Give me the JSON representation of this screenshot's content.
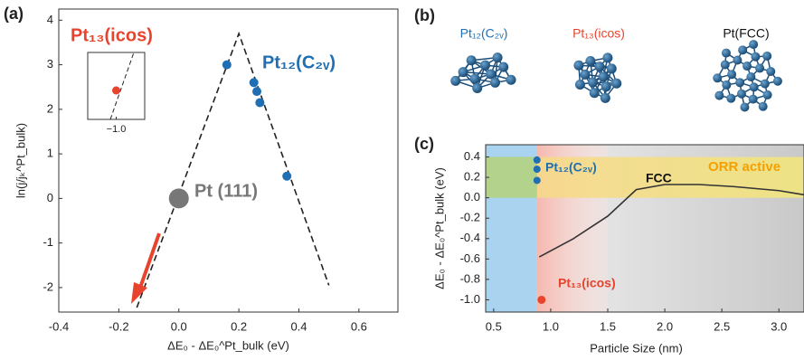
{
  "panel_b": {
    "label": "(b)",
    "structures": [
      {
        "label": "Pt₁₂(C₂ᵥ)",
        "color": "#1f6fb2"
      },
      {
        "label": "Pt₁₃(icos)",
        "color": "#e8432c"
      },
      {
        "label": "Pt(FCC)",
        "color": "#111111"
      }
    ]
  },
  "chart_data": [
    {
      "type": "scatter",
      "panel_label": "(a)",
      "xlabel": "ΔE₀ - ΔE₀^Pt_bulk (eV)",
      "ylabel": "ln(j/jₖ^Pt_bulk)",
      "xlim": [
        -0.4,
        0.73
      ],
      "ylim": [
        -2.55,
        4.25
      ],
      "xticks": [
        -0.4,
        -0.2,
        {
          "value": 0,
          "label": "0.0"
        },
        0.2,
        0.4,
        0.6
      ],
      "yticks": [
        -2,
        -1,
        0,
        1,
        2,
        3,
        4
      ],
      "series": [
        {
          "color": "#222222",
          "style": "dashed",
          "x": [
            -0.14,
            0.2,
            0.5
          ],
          "values": [
            -2.45,
            3.7,
            -1.95
          ]
        },
        {
          "name": "Pt₁₂(C₂ᵥ)",
          "color": "#1f6fb2",
          "size": 5,
          "x": [
            0.16,
            0.25,
            0.26,
            0.27,
            0.36
          ],
          "values": [
            3.0,
            2.6,
            2.4,
            2.15,
            0.5
          ]
        },
        {
          "name": "Pt (111)",
          "color": "#777777",
          "size": 11,
          "x": [
            0
          ],
          "values": [
            0
          ]
        }
      ],
      "inset": {
        "title": "Pt₁₃(icos)",
        "color": "#e8432c",
        "xlim": [
          -1.25,
          -0.75
        ],
        "x": [
          -1.0
        ],
        "xticks": [
          {
            "value": -1.0,
            "label": "−1.0"
          }
        ]
      }
    },
    {
      "type": "scatter",
      "panel_label": "(c)",
      "xlabel": "Particle Size (nm)",
      "ylabel": "ΔE₀ - ΔE₀^Pt_bulk (eV)",
      "xlim": [
        0.43,
        3.22
      ],
      "ylim": [
        -1.12,
        0.52
      ],
      "xticks": [
        0.5,
        {
          "value": 1,
          "label": "1.0"
        },
        1.5,
        {
          "value": 2,
          "label": "2.0"
        },
        2.5,
        {
          "value": 3,
          "label": "3.0"
        }
      ],
      "yticks": [
        0.4,
        0.2,
        {
          "value": 0,
          "label": "0.0"
        },
        -0.2,
        -0.4,
        -0.6,
        -0.8,
        {
          "value": -1,
          "label": "-1.0"
        }
      ],
      "annotation": {
        "text": "ORR active",
        "color": "#f5a000"
      },
      "series": [
        {
          "name": "FCC",
          "color": "#333333",
          "style": "solid",
          "x": [
            0.9,
            1.2,
            1.5,
            1.75,
            2.0,
            2.3,
            2.6,
            3.0,
            3.22
          ],
          "values": [
            -0.58,
            -0.4,
            -0.18,
            0.08,
            0.13,
            0.13,
            0.11,
            0.07,
            0.03
          ]
        },
        {
          "name": "Pt₁₂(C₂ᵥ)",
          "color": "#1f6fb2",
          "size": 4,
          "x": [
            0.88,
            0.88,
            0.88
          ],
          "values": [
            0.37,
            0.28,
            0.17
          ]
        },
        {
          "name": "Pt₁₃(icos)",
          "color": "#e8432c",
          "size": 4.5,
          "x": [
            0.92
          ],
          "values": [
            -1.0
          ]
        }
      ]
    }
  ]
}
